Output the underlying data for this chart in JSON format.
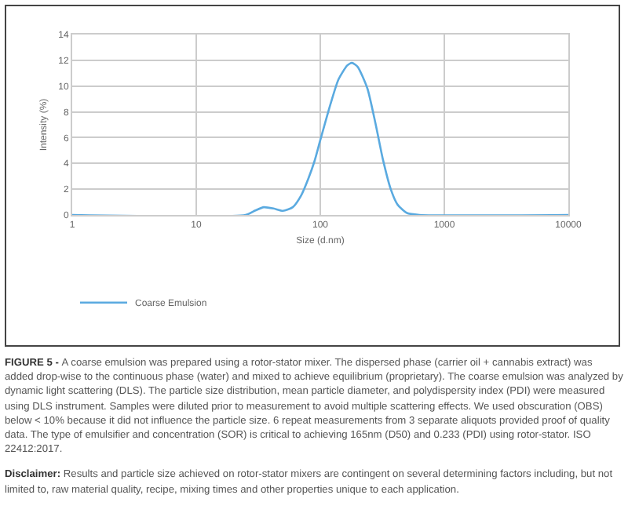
{
  "chart_data": {
    "type": "line",
    "xlabel": "Size (d.nm)",
    "ylabel": "Intensity (%)",
    "log": "x",
    "xlim": [
      1,
      10000
    ],
    "xticks": [
      1,
      10,
      100,
      1000,
      10000
    ],
    "ylim": [
      0,
      14
    ],
    "yticks": [
      0,
      2,
      4,
      6,
      8,
      10,
      12,
      14
    ],
    "grid": true,
    "legend": "bottom",
    "marker": "none",
    "line_style": "solid",
    "x": [
      1,
      25,
      30,
      35,
      42,
      50,
      60,
      70,
      80,
      90,
      100,
      120,
      140,
      165,
      180,
      200,
      240,
      280,
      320,
      370,
      420,
      500,
      630,
      10000
    ],
    "series": [
      {
        "name": "Coarse Emulsion",
        "color": "#5aaae0",
        "values": [
          0,
          0,
          0.35,
          0.6,
          0.5,
          0.32,
          0.6,
          1.5,
          2.8,
          4.2,
          5.8,
          8.5,
          10.5,
          11.6,
          11.8,
          11.5,
          9.8,
          7,
          4.3,
          2,
          0.8,
          0.15,
          0,
          0
        ]
      }
    ],
    "annotations": [
      "FIGURE 5 - A coarse emulsion was prepared using a rotor-stator mixer. The dispersed phase (carrier oil + cannabis extract) was added drop-wise to the continuous phase (water) and mixed to achieve equilibrium (proprietary). The coarse emulsion was analyzed by dynamic light scattering (DLS). The particle size distribution, mean particle diameter, and polydispersity index (PDI) were measured using DLS instrument. Samples were diluted prior to measurement to avoid multiple scattering effects. We used obscuration (OBS) below < 10% because it did not influence the particle size. 6 repeat measurements from 3 separate aliquots provided proof of quality data. The type of emulsifier and concentration (SOR) is critical to achieving 165nm (D50) and 0.233 (PDI) using rotor-stator. ISO 22412:2017.",
      "Disclaimer: Results and particle size achieved on rotor-stator mixers are contingent on several determining factors including, but not limited to, raw material quality, recipe, mixing times and other properties unique to each application."
    ]
  }
}
